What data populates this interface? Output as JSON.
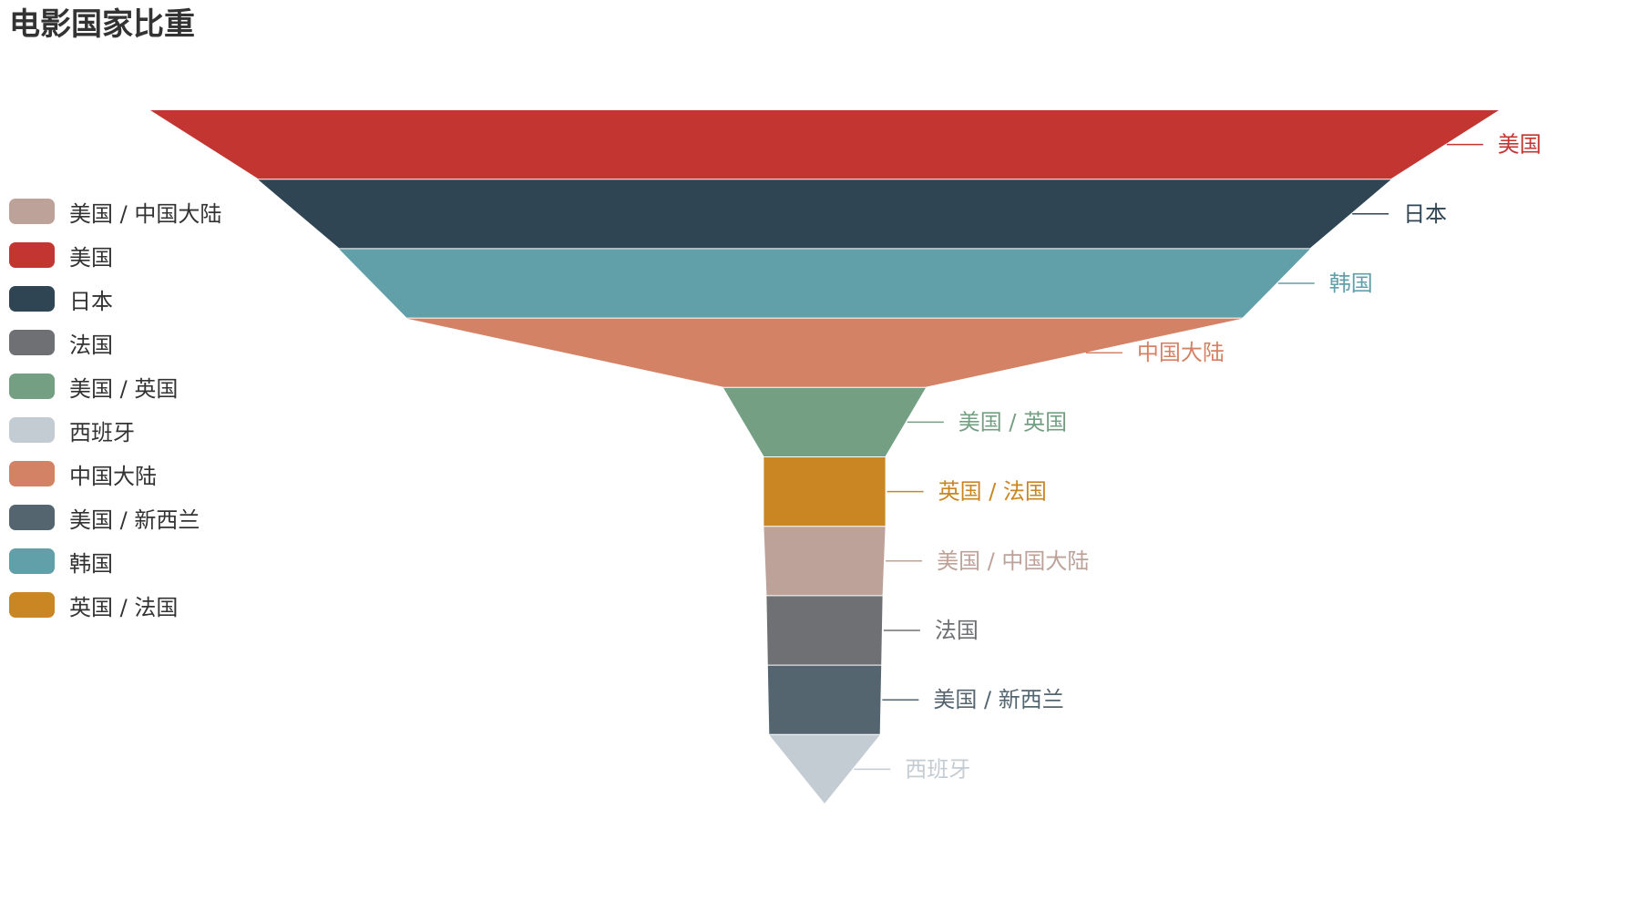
{
  "chart_data": {
    "type": "funnel",
    "title": "电影国家比重",
    "series": [
      {
        "name": "美国",
        "value": 100,
        "color": "#c23531"
      },
      {
        "name": "日本",
        "value": 84,
        "color": "#2f4554"
      },
      {
        "name": "韩国",
        "value": 72,
        "color": "#61a0a8"
      },
      {
        "name": "中国大陆",
        "value": 62,
        "color": "#d48265"
      },
      {
        "name": "美国 / 英国",
        "value": 15,
        "color": "#749f83"
      },
      {
        "name": "英国 / 法国",
        "value": 9,
        "color": "#ca8622"
      },
      {
        "name": "美国 / 中国大陆",
        "value": 9,
        "color": "#bda29a"
      },
      {
        "name": "法国",
        "value": 8.6,
        "color": "#6e7074"
      },
      {
        "name": "美国 / 新西兰",
        "value": 8.4,
        "color": "#546570"
      },
      {
        "name": "西班牙",
        "value": 8.2,
        "color": "#c4ccd3"
      }
    ],
    "legend": {
      "position": "left",
      "items": [
        {
          "label": "美国 / 中国大陆",
          "color": "#bda29a"
        },
        {
          "label": "美国",
          "color": "#c23531"
        },
        {
          "label": "日本",
          "color": "#2f4554"
        },
        {
          "label": "法国",
          "color": "#6e7074"
        },
        {
          "label": "美国 / 英国",
          "color": "#749f83"
        },
        {
          "label": "西班牙",
          "color": "#c4ccd3"
        },
        {
          "label": "中国大陆",
          "color": "#d48265"
        },
        {
          "label": "美国 / 新西兰",
          "color": "#546570"
        },
        {
          "label": "韩国",
          "color": "#61a0a8"
        },
        {
          "label": "英国 / 法国",
          "color": "#ca8622"
        }
      ]
    },
    "sort": "descending",
    "label_position": "right"
  }
}
